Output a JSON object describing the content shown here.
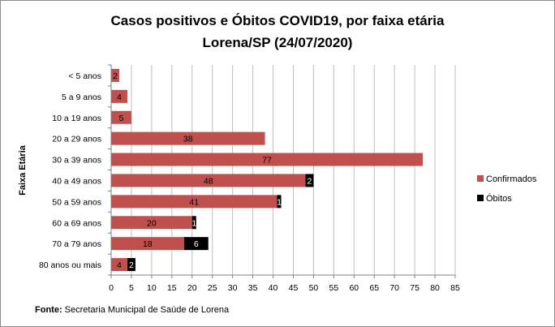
{
  "footer": {
    "label": "Fonte:",
    "text": "Secretaria Municipal de Saúde de Lorena"
  },
  "colors": {
    "confirmados": "#c0504d",
    "obitos": "#000000",
    "gridline": "#bfbfbf"
  },
  "chart_data": {
    "type": "bar",
    "orientation": "horizontal",
    "stacked": true,
    "title": "Casos positivos  e Óbitos COVID19, por faixa etária",
    "subtitle": "Lorena/SP (24/07/2020)",
    "ylabel": "Faixa Etária",
    "xlabel": "",
    "xlim": [
      0,
      85
    ],
    "xticks": [
      0,
      5,
      10,
      15,
      20,
      25,
      30,
      35,
      40,
      45,
      50,
      55,
      60,
      65,
      70,
      75,
      80,
      85
    ],
    "grid": true,
    "legend_position": "right",
    "categories": [
      "< 5 anos",
      "5 a 9 anos",
      "10 a 19 anos",
      "20 a 29 anos",
      "30 a 39 anos",
      "40 a 49 anos",
      "50 a 59 anos",
      "60 a 69 anos",
      "70 a 79 anos",
      "80 anos ou mais"
    ],
    "series": [
      {
        "name": "Confirmados",
        "values": [
          2,
          4,
          5,
          38,
          77,
          48,
          41,
          20,
          18,
          4
        ]
      },
      {
        "name": "Óbitos",
        "values": [
          0,
          0,
          0,
          0,
          0,
          2,
          1,
          1,
          6,
          2
        ]
      }
    ]
  }
}
